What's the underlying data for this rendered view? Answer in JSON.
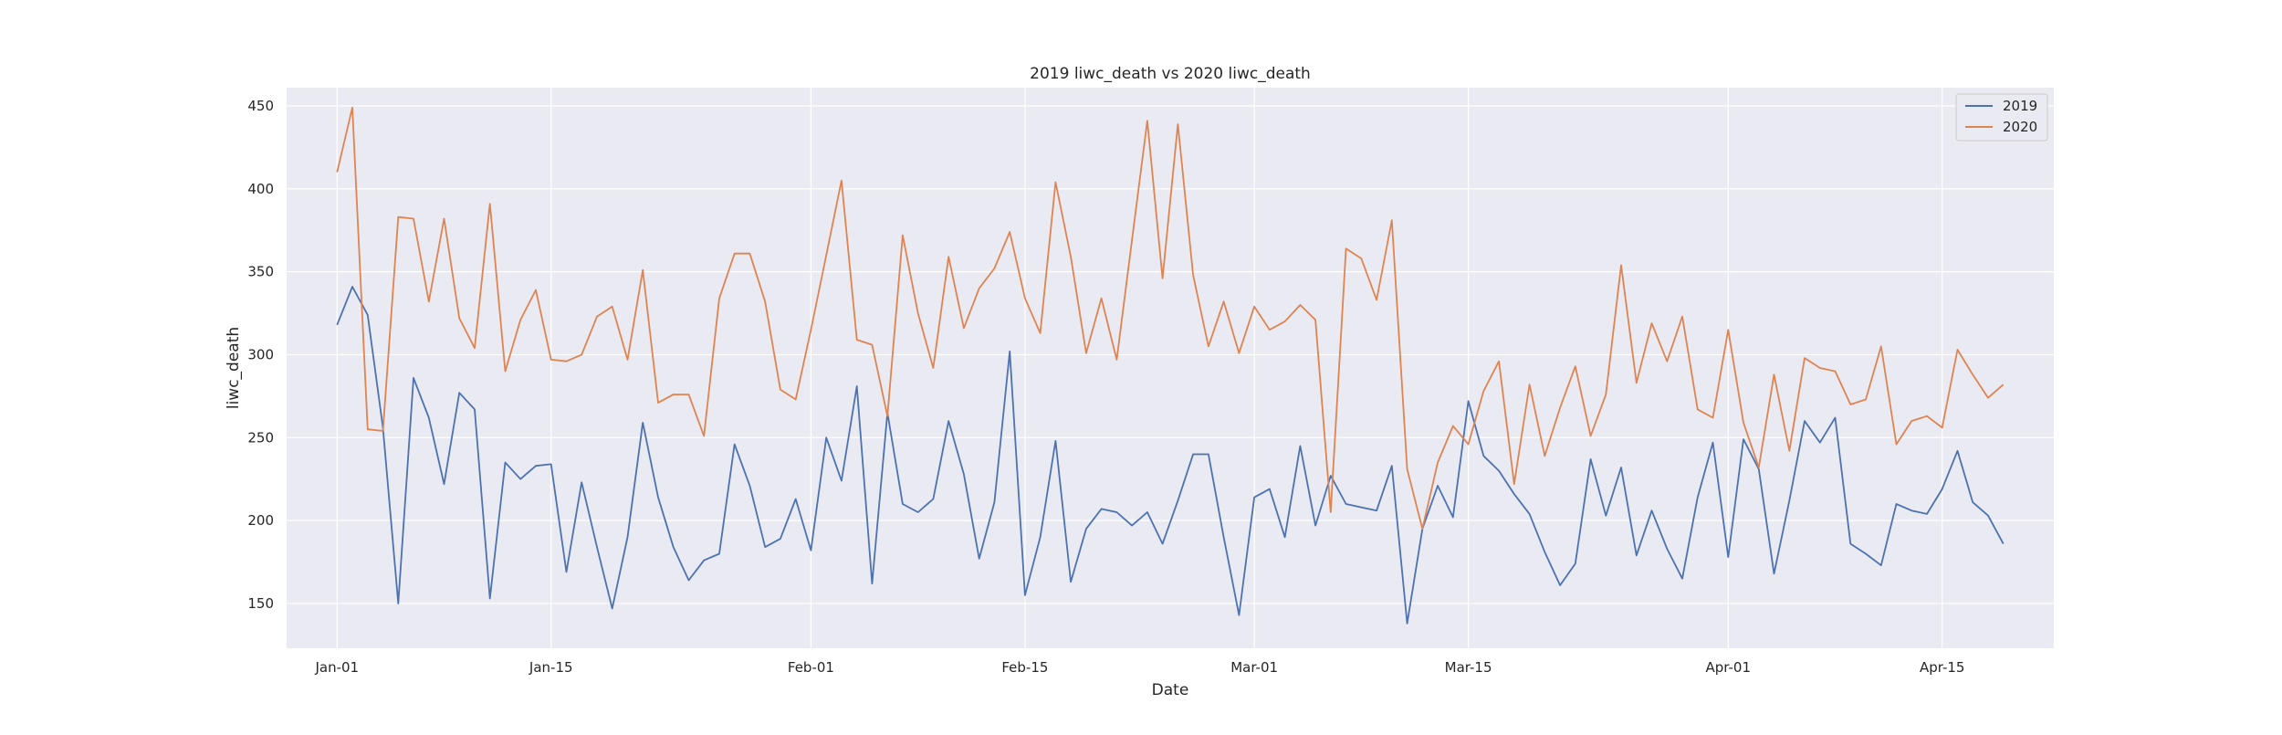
{
  "chart_data": {
    "type": "line",
    "title": "2019 liwc_death vs 2020 liwc_death",
    "xlabel": "Date",
    "ylabel": "liwc_death",
    "x_start": "2020-01-01",
    "x_end": "2020-04-19",
    "x_tick_labels": [
      "Jan-01",
      "Jan-15",
      "Feb-01",
      "Feb-15",
      "Mar-01",
      "Mar-15",
      "Apr-01",
      "Apr-15"
    ],
    "x_tick_dates": [
      "2020-01-01",
      "2020-01-15",
      "2020-02-01",
      "2020-02-15",
      "2020-03-01",
      "2020-03-15",
      "2020-04-01",
      "2020-04-15"
    ],
    "y_ticks": [
      150,
      200,
      250,
      300,
      350,
      400,
      450
    ],
    "ylim": [
      123,
      461
    ],
    "grid": true,
    "legend": "upper right",
    "series": [
      {
        "name": "2019",
        "color": "#4c72b0",
        "values": [
          318,
          341,
          324,
          256,
          150,
          286,
          262,
          222,
          277,
          267,
          153,
          235,
          225,
          233,
          234,
          169,
          223,
          184,
          147,
          190,
          259,
          214,
          184,
          164,
          176,
          180,
          246,
          221,
          184,
          189,
          213,
          182,
          250,
          224,
          281,
          162,
          265,
          210,
          205,
          213,
          260,
          228,
          177,
          211,
          302,
          155,
          190,
          248,
          163,
          195,
          207,
          205,
          197,
          205,
          186,
          212,
          240,
          240,
          190,
          143,
          214,
          219,
          190,
          245,
          197,
          227,
          210,
          208,
          206,
          233,
          138,
          195,
          221,
          202,
          272,
          239,
          230,
          216,
          204,
          181,
          161,
          174,
          237,
          203,
          232,
          179,
          206,
          183,
          165,
          214,
          247,
          178,
          249,
          231,
          168,
          212,
          260,
          247,
          262,
          186,
          180,
          173,
          210,
          206,
          204,
          219,
          242,
          211,
          203,
          186
        ]
      },
      {
        "name": "2020",
        "color": "#dd8452",
        "values": [
          410,
          449,
          255,
          254,
          383,
          382,
          332,
          382,
          322,
          304,
          391,
          290,
          321,
          339,
          297,
          296,
          300,
          323,
          329,
          297,
          351,
          271,
          276,
          276,
          251,
          334,
          361,
          361,
          332,
          279,
          273,
          315,
          360,
          405,
          309,
          306,
          263,
          372,
          325,
          292,
          359,
          316,
          340,
          352,
          374,
          334,
          313,
          404,
          359,
          301,
          334,
          297,
          369,
          441,
          346,
          439,
          348,
          305,
          332,
          301,
          329,
          315,
          320,
          330,
          321,
          205,
          364,
          358,
          333,
          381,
          231,
          195,
          235,
          257,
          246,
          278,
          296,
          222,
          282,
          239,
          268,
          293,
          251,
          276,
          354,
          283,
          319,
          296,
          323,
          267,
          262,
          315,
          259,
          232,
          288,
          242,
          298,
          292,
          290,
          270,
          273,
          305,
          246,
          260,
          263,
          256,
          303,
          288,
          274,
          282
        ]
      }
    ]
  }
}
